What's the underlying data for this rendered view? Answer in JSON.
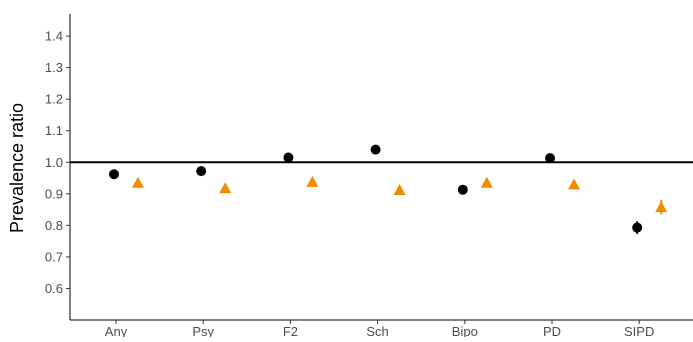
{
  "chart_data": {
    "type": "scatter",
    "title": "",
    "xlabel": "",
    "ylabel": "Prevalence ratio",
    "categories": [
      "Any",
      "Psy",
      "F2",
      "Sch",
      "Bipo",
      "PD",
      "SIPD"
    ],
    "ylim": [
      0.5,
      1.47
    ],
    "yticks": [
      0.6,
      0.7,
      0.8,
      0.9,
      1.0,
      1.1,
      1.2,
      1.3,
      1.4
    ],
    "ytick_labels": [
      "0.6",
      "0.7",
      "0.8",
      "0.9",
      "1.0",
      "1.1",
      "1.2",
      "1.3",
      "1.4"
    ],
    "reference_line": 1.0,
    "grid": false,
    "legend": "none",
    "series": [
      {
        "marker": "circle",
        "color": "#000000",
        "values": [
          0.962,
          0.972,
          1.015,
          1.04,
          0.913,
          1.013,
          0.793
        ],
        "lower": [
          0.957,
          0.967,
          1.01,
          1.028,
          0.908,
          1.0,
          0.773
        ],
        "upper": [
          0.967,
          0.977,
          1.02,
          1.052,
          0.918,
          1.026,
          0.813
        ]
      },
      {
        "marker": "triangle",
        "color": "#f28a00",
        "values": [
          0.935,
          0.918,
          0.938,
          0.912,
          0.935,
          0.93,
          0.858
        ],
        "lower": [
          0.93,
          0.913,
          0.933,
          0.905,
          0.928,
          0.92,
          0.835
        ],
        "upper": [
          0.94,
          0.923,
          0.943,
          0.919,
          0.942,
          0.94,
          0.881
        ]
      }
    ]
  }
}
